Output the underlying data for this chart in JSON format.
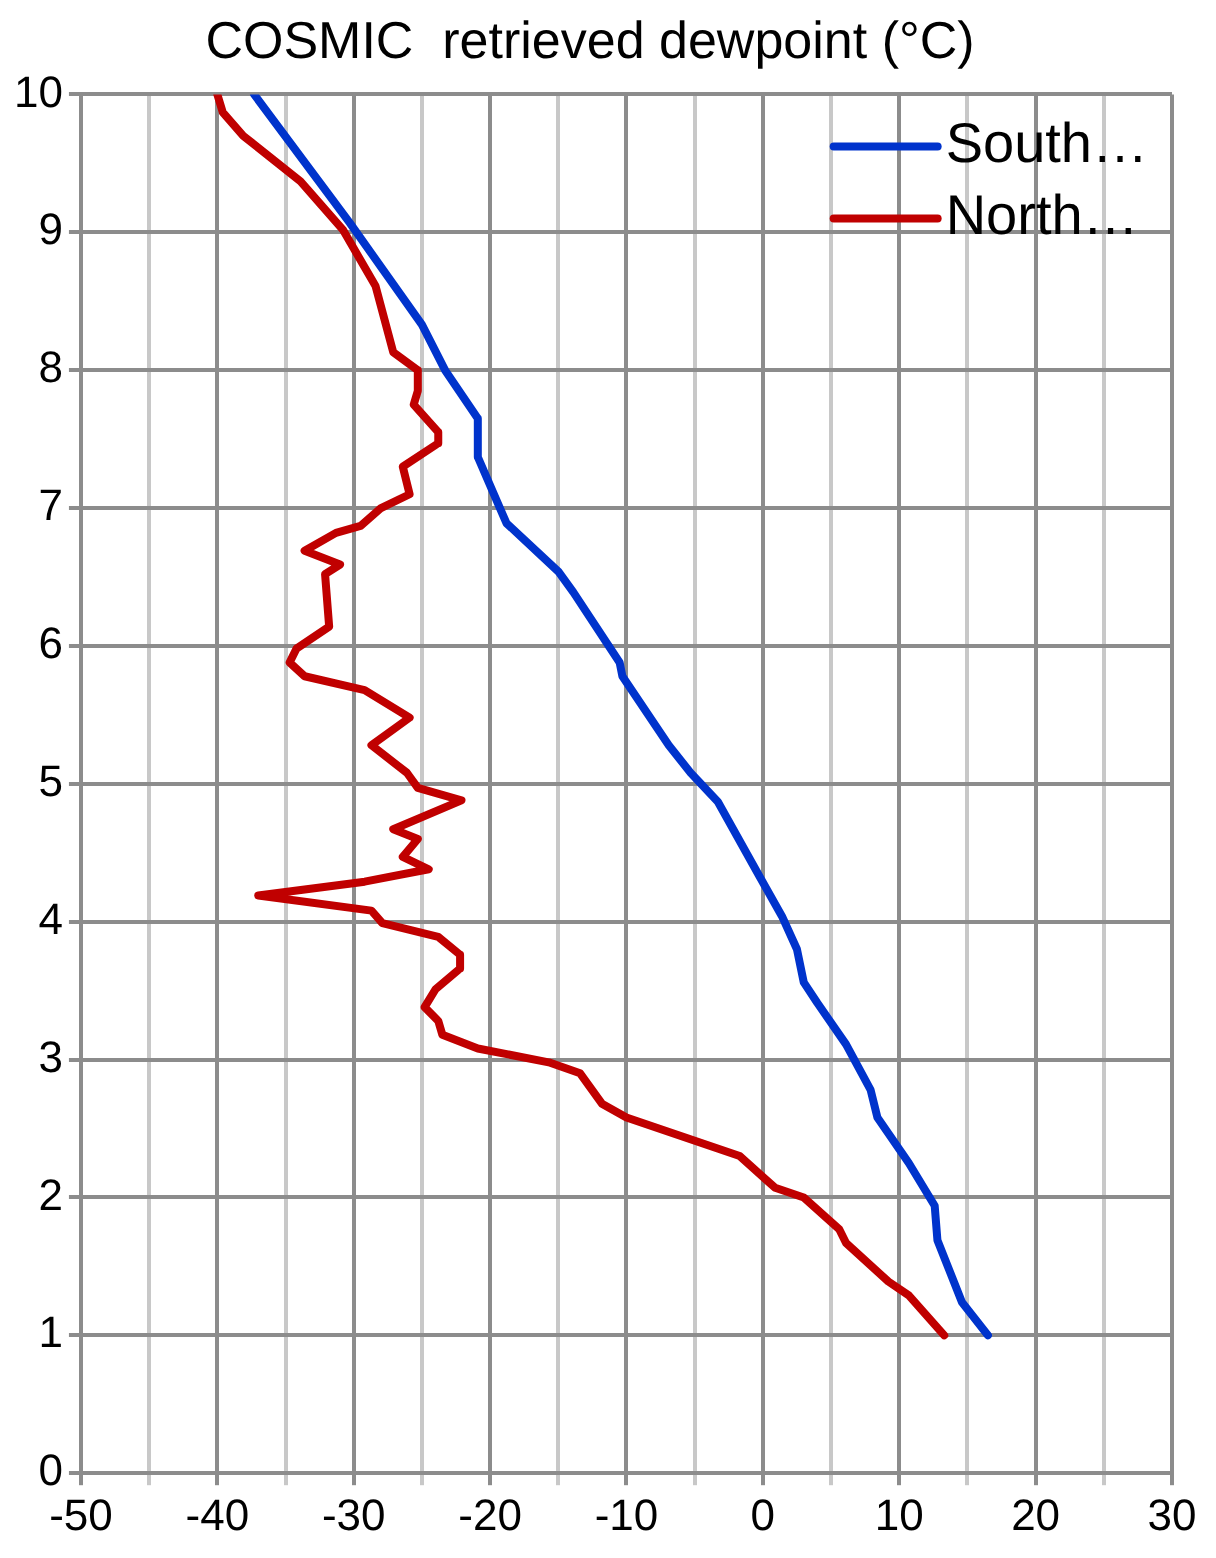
{
  "chart_data": {
    "type": "line",
    "title": "COSMIC  retrieved dewpoint (°C)",
    "xlim": [
      -50,
      30
    ],
    "xticks": [
      -50,
      {
        "value": -45,
        "label": null
      },
      -40,
      {
        "value": -35,
        "label": null
      },
      -30,
      {
        "value": -25,
        "label": null
      },
      -20,
      {
        "value": -15,
        "label": null
      },
      -10,
      {
        "value": -5,
        "label": null
      },
      0,
      {
        "value": 5,
        "label": null
      },
      10,
      {
        "value": 15,
        "label": null
      },
      20,
      {
        "value": 25,
        "label": null
      },
      30
    ],
    "ylim": [
      0,
      10
    ],
    "yticks": [
      0,
      1,
      2,
      3,
      4,
      5,
      6,
      7,
      8,
      9,
      10
    ],
    "grid": true,
    "legend": "top right",
    "line_style": "solid",
    "series": [
      {
        "name": "South…",
        "color": "#0033cc",
        "x": [
          -37.3,
          -30.3,
          -25.0,
          -23.3,
          -20.9,
          -20.9,
          -18.8,
          -15.0,
          -13.9,
          -10.5,
          -10.3,
          -6.9,
          -5.3,
          -3.3,
          -0.2,
          1.4,
          2.5,
          3.0,
          4.0,
          6.1,
          7.9,
          8.4,
          10.7,
          12.6,
          12.8,
          14.6,
          16.5
        ],
        "values": [
          10,
          9.07,
          8.33,
          8.0,
          7.65,
          7.37,
          6.89,
          6.54,
          6.39,
          5.88,
          5.78,
          5.28,
          5.08,
          4.87,
          4.32,
          4.04,
          3.8,
          3.56,
          3.41,
          3.11,
          2.78,
          2.58,
          2.25,
          1.94,
          1.69,
          1.24,
          1.0
        ]
      },
      {
        "name": "North…",
        "color": "#c00000",
        "x": [
          -40.0,
          -39.6,
          -38.1,
          -33.9,
          -30.8,
          -28.4,
          -27.1,
          -25.3,
          -25.3,
          -25.6,
          -23.8,
          -23.8,
          -26.4,
          -25.9,
          -28.0,
          -29.5,
          -31.3,
          -33.6,
          -31.0,
          -32.1,
          -31.8,
          -34.2,
          -34.7,
          -33.6,
          -29.2,
          -25.9,
          -28.7,
          -26.1,
          -25.3,
          -22.1,
          -27.1,
          -25.3,
          -26.4,
          -24.5,
          -29.2,
          -37.0,
          -28.7,
          -27.9,
          -23.8,
          -22.2,
          -22.2,
          -24.0,
          -24.8,
          -23.8,
          -23.5,
          -20.9,
          -15.7,
          -13.4,
          -11.8,
          -10.0,
          -1.7,
          0.9,
          3.0,
          5.6,
          6.1,
          9.2,
          10.7,
          13.3
        ],
        "values": [
          10,
          9.87,
          9.7,
          9.37,
          9.02,
          8.61,
          8.13,
          8.0,
          7.85,
          7.75,
          7.55,
          7.47,
          7.3,
          7.1,
          7.0,
          6.87,
          6.82,
          6.69,
          6.59,
          6.52,
          6.14,
          5.98,
          5.88,
          5.78,
          5.68,
          5.48,
          5.28,
          5.08,
          4.97,
          4.88,
          4.67,
          4.6,
          4.47,
          4.38,
          4.29,
          4.19,
          4.08,
          3.99,
          3.89,
          3.76,
          3.66,
          3.51,
          3.38,
          3.28,
          3.18,
          3.08,
          2.98,
          2.9,
          2.68,
          2.58,
          2.3,
          2.07,
          2.0,
          1.77,
          1.67,
          1.39,
          1.29,
          1.0
        ]
      }
    ]
  }
}
